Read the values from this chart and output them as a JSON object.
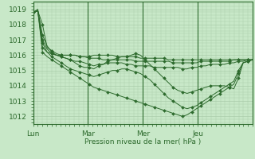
{
  "background_color": "#c8e8c8",
  "grid_color": "#aaccaa",
  "line_color": "#2d6a2d",
  "marker_color": "#2d6a2d",
  "xlabel": "Pression niveau de la mer( hPa )",
  "ylim": [
    1011.5,
    1019.5
  ],
  "xlim": [
    0,
    96
  ],
  "yticks": [
    1012,
    1013,
    1014,
    1015,
    1016,
    1017,
    1018,
    1019
  ],
  "xtick_positions": [
    0,
    24,
    48,
    72
  ],
  "xtick_labels": [
    "Lun",
    "Mar",
    "Mer",
    "Jeu"
  ],
  "series": [
    [
      1018.8,
      1018.9,
      1016.5,
      1016.2,
      1016.1,
      1016.0,
      1016.0,
      1016.0,
      1016.0,
      1016.0,
      1015.9,
      1015.9,
      1015.9,
      1016.0,
      1016.0,
      1016.0,
      1016.0,
      1016.0,
      1015.9,
      1015.9,
      1015.9,
      1015.9,
      1015.9,
      1015.8,
      1015.8,
      1015.8,
      1015.8,
      1015.8,
      1015.8,
      1015.7,
      1015.7,
      1015.7,
      1015.7,
      1015.7,
      1015.7,
      1015.7,
      1015.7,
      1015.7,
      1015.7,
      1015.7,
      1015.7,
      1015.7,
      1015.7,
      1015.7,
      1015.7,
      1015.7,
      1015.7,
      1015.7
    ],
    [
      1018.8,
      1018.9,
      1018.0,
      1016.5,
      1016.3,
      1016.1,
      1016.0,
      1016.0,
      1016.0,
      1016.0,
      1015.9,
      1015.9,
      1015.8,
      1015.8,
      1015.8,
      1015.7,
      1015.7,
      1015.7,
      1015.7,
      1015.7,
      1015.7,
      1015.7,
      1015.6,
      1015.6,
      1015.6,
      1015.6,
      1015.6,
      1015.6,
      1015.6,
      1015.6,
      1015.5,
      1015.5,
      1015.5,
      1015.5,
      1015.5,
      1015.5,
      1015.6,
      1015.6,
      1015.6,
      1015.6,
      1015.6,
      1015.6,
      1015.6,
      1015.7,
      1015.7,
      1015.7,
      1015.7,
      1015.7
    ],
    [
      1018.8,
      1018.9,
      1017.3,
      1016.6,
      1016.2,
      1016.0,
      1015.9,
      1015.8,
      1015.7,
      1015.6,
      1015.6,
      1015.5,
      1015.4,
      1015.3,
      1015.4,
      1015.4,
      1015.5,
      1015.5,
      1015.5,
      1015.5,
      1015.4,
      1015.4,
      1015.3,
      1015.3,
      1015.3,
      1015.3,
      1015.2,
      1015.2,
      1015.2,
      1015.2,
      1015.2,
      1015.2,
      1015.1,
      1015.1,
      1015.2,
      1015.2,
      1015.3,
      1015.3,
      1015.4,
      1015.4,
      1015.4,
      1015.4,
      1015.5,
      1015.5,
      1015.6,
      1015.6,
      1015.7,
      1015.7
    ],
    [
      1018.8,
      1019.0,
      1017.0,
      1016.4,
      1016.1,
      1016.0,
      1015.9,
      1015.8,
      1015.7,
      1015.5,
      1015.3,
      1015.2,
      1015.2,
      1015.1,
      1015.3,
      1015.4,
      1015.6,
      1015.7,
      1015.8,
      1015.9,
      1015.9,
      1016.0,
      1016.1,
      1016.0,
      1015.7,
      1015.4,
      1015.1,
      1014.8,
      1014.5,
      1014.2,
      1013.9,
      1013.7,
      1013.6,
      1013.5,
      1013.6,
      1013.7,
      1013.8,
      1013.9,
      1014.0,
      1014.0,
      1014.0,
      1014.0,
      1013.9,
      1013.8,
      1014.5,
      1015.5,
      1015.6,
      1015.7
    ],
    [
      1018.8,
      1018.9,
      1016.8,
      1016.2,
      1015.9,
      1015.7,
      1015.5,
      1015.3,
      1015.1,
      1015.0,
      1014.9,
      1014.8,
      1014.7,
      1014.6,
      1014.7,
      1014.8,
      1014.9,
      1015.0,
      1015.0,
      1015.1,
      1015.1,
      1015.0,
      1014.9,
      1014.8,
      1014.6,
      1014.4,
      1014.1,
      1013.8,
      1013.5,
      1013.2,
      1013.0,
      1012.8,
      1012.6,
      1012.5,
      1012.6,
      1012.7,
      1012.9,
      1013.1,
      1013.3,
      1013.5,
      1013.7,
      1013.9,
      1014.1,
      1014.3,
      1015.0,
      1015.5,
      1015.6,
      1015.7
    ],
    [
      1018.8,
      1018.9,
      1016.2,
      1015.9,
      1015.7,
      1015.5,
      1015.3,
      1015.1,
      1014.9,
      1014.7,
      1014.5,
      1014.3,
      1014.1,
      1013.9,
      1013.8,
      1013.7,
      1013.6,
      1013.5,
      1013.4,
      1013.3,
      1013.2,
      1013.1,
      1013.0,
      1012.9,
      1012.8,
      1012.7,
      1012.6,
      1012.5,
      1012.4,
      1012.3,
      1012.2,
      1012.1,
      1012.0,
      1012.1,
      1012.3,
      1012.5,
      1012.7,
      1012.9,
      1013.1,
      1013.3,
      1013.5,
      1013.7,
      1013.9,
      1014.1,
      1014.8,
      1015.5,
      1015.6,
      1015.7
    ]
  ],
  "marker_step": 2,
  "marker": "D",
  "marker_size": 2.0
}
